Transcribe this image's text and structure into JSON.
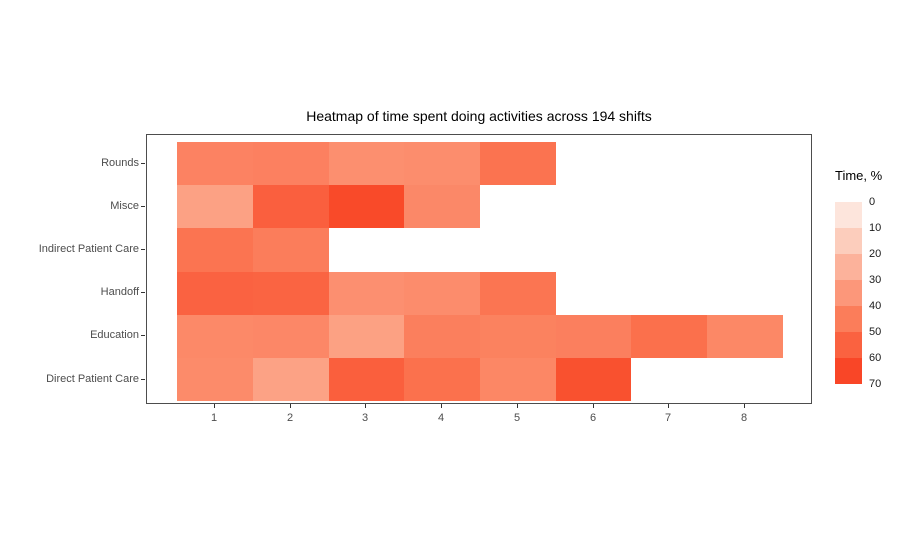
{
  "page": {
    "background": "#ffffff"
  },
  "chart_data": {
    "type": "heatmap",
    "title": "Heatmap of time spent doing activities across 194 shifts",
    "xlabel": "",
    "ylabel": "",
    "x_ticks": [
      "1",
      "2",
      "3",
      "4",
      "5",
      "6",
      "7",
      "8"
    ],
    "x_range": [
      0.5,
      8.5
    ],
    "y_categories_top_to_bottom": [
      "Rounds",
      "Misce",
      "Indirect Patient Care",
      "Handoff",
      "Education",
      "Direct Patient Care"
    ],
    "grid": false,
    "panel_border_color": "#4d4d4d",
    "value_unit": "%",
    "value_range": [
      0,
      70
    ],
    "legend": {
      "title": "Time, %",
      "position": "right",
      "tick_labels": [
        "0",
        "10",
        "20",
        "30",
        "40",
        "50",
        "60",
        "70"
      ],
      "bin_colors_top_to_bottom": [
        "#fde5dc",
        "#fccdbc",
        "#fcb29b",
        "#fc977a",
        "#fb7d5a",
        "#fa6240",
        "#f94627"
      ]
    },
    "rows": [
      {
        "label": "Rounds",
        "cells": [
          {
            "x": 1,
            "value": 47,
            "color": "#fc8262"
          },
          {
            "x": 2,
            "value": 48,
            "color": "#fc8060"
          },
          {
            "x": 3,
            "value": 42,
            "color": "#fc8f6f"
          },
          {
            "x": 4,
            "value": 43,
            "color": "#fc8d6d"
          },
          {
            "x": 5,
            "value": 53,
            "color": "#fb7350"
          }
        ]
      },
      {
        "label": "Misce",
        "cells": [
          {
            "x": 1,
            "value": 36,
            "color": "#fca184"
          },
          {
            "x": 2,
            "value": 60,
            "color": "#fa5f3e"
          },
          {
            "x": 3,
            "value": 68,
            "color": "#f94a29"
          },
          {
            "x": 4,
            "value": 45,
            "color": "#fb8868"
          }
        ]
      },
      {
        "label": "Indirect Patient Care",
        "cells": [
          {
            "x": 1,
            "value": 53,
            "color": "#fb7451"
          },
          {
            "x": 2,
            "value": 49,
            "color": "#fb7d5b"
          }
        ]
      },
      {
        "label": "Handoff",
        "cells": [
          {
            "x": 1,
            "value": 59,
            "color": "#fa6241"
          },
          {
            "x": 2,
            "value": 58,
            "color": "#fa6442"
          },
          {
            "x": 3,
            "value": 42,
            "color": "#fc8f70"
          },
          {
            "x": 4,
            "value": 43,
            "color": "#fc8c6c"
          },
          {
            "x": 5,
            "value": 52,
            "color": "#fb7552"
          }
        ]
      },
      {
        "label": "Education",
        "cells": [
          {
            "x": 1,
            "value": 45,
            "color": "#fc8968"
          },
          {
            "x": 2,
            "value": 45,
            "color": "#fc8767"
          },
          {
            "x": 3,
            "value": 36,
            "color": "#fca183"
          },
          {
            "x": 4,
            "value": 48,
            "color": "#fb7f5d"
          },
          {
            "x": 5,
            "value": 47,
            "color": "#fb825f"
          },
          {
            "x": 6,
            "value": 48,
            "color": "#fb7f5e"
          },
          {
            "x": 7,
            "value": 54,
            "color": "#fb704c"
          },
          {
            "x": 8,
            "value": 45,
            "color": "#fc8866"
          }
        ]
      },
      {
        "label": "Direct Patient Care",
        "cells": [
          {
            "x": 1,
            "value": 44,
            "color": "#fc8b6a"
          },
          {
            "x": 2,
            "value": 35,
            "color": "#fca285"
          },
          {
            "x": 3,
            "value": 60,
            "color": "#fa5f3d"
          },
          {
            "x": 4,
            "value": 54,
            "color": "#fb714d"
          },
          {
            "x": 5,
            "value": 45,
            "color": "#fc8765"
          },
          {
            "x": 6,
            "value": 66,
            "color": "#f9512f"
          }
        ]
      }
    ]
  }
}
